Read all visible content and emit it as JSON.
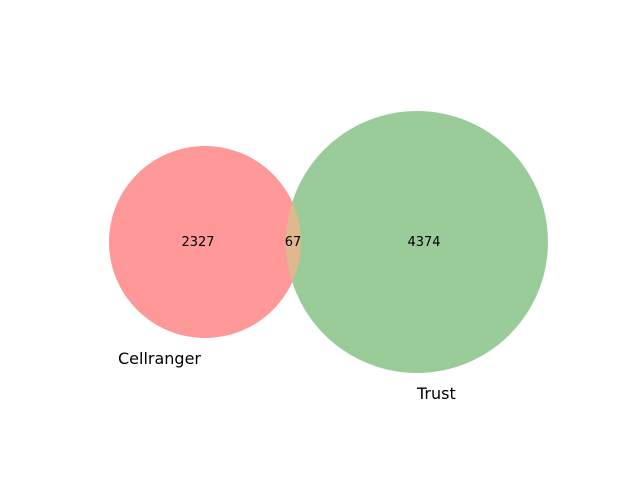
{
  "venn": {
    "sets": [
      {
        "name": "Cellranger",
        "only_count": "2327",
        "color": "#ff9999"
      },
      {
        "name": "Trust",
        "only_count": "4374",
        "color": "#99cc99"
      }
    ],
    "intersection": {
      "count": "67",
      "color": "#e0b88e"
    }
  }
}
